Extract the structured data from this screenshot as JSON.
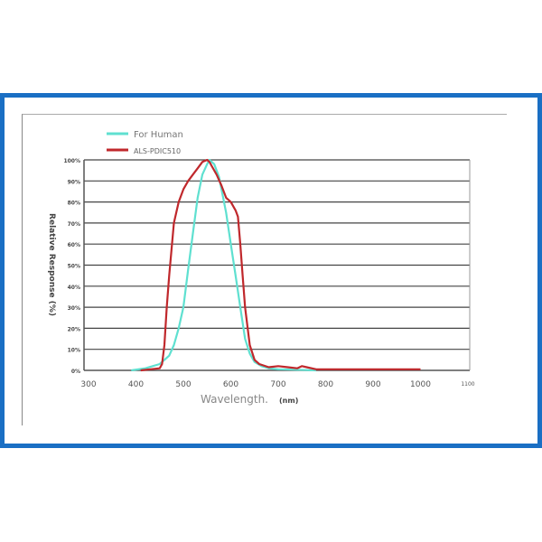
{
  "chart_data": {
    "type": "line",
    "xlabel": "Wavelength.",
    "xlabel_unit": "(nm)",
    "ylabel": "Relative Response (%)",
    "xlim": [
      300,
      1100
    ],
    "ylim": [
      0,
      100
    ],
    "x_ticks": [
      "300",
      "400",
      "500",
      "600",
      "700",
      "800",
      "900",
      "1000",
      "1100"
    ],
    "y_ticks": [
      "0%",
      "10%",
      "20%",
      "30%",
      "40%",
      "50%",
      "60%",
      "70%",
      "80%",
      "90%",
      "100%"
    ],
    "grid": "horizontal",
    "legend": "top-left",
    "series": [
      {
        "name": "For Human",
        "color": "#5fe0d0",
        "x": [
          390,
          420,
          450,
          470,
          480,
          490,
          500,
          510,
          520,
          530,
          540,
          550,
          555,
          565,
          575,
          590,
          600,
          610,
          620,
          630,
          640,
          650,
          665,
          680,
          700,
          740,
          780
        ],
        "y": [
          0,
          1,
          3,
          7,
          12,
          20,
          30,
          48,
          65,
          82,
          93,
          98,
          100,
          98,
          92,
          75,
          60,
          45,
          30,
          15,
          8,
          4,
          2,
          1,
          0.5,
          0.3,
          0
        ]
      },
      {
        "name": "ALS-PDIC510",
        "color": "#c0282c",
        "x": [
          410,
          430,
          450,
          455,
          460,
          465,
          470,
          480,
          490,
          500,
          510,
          520,
          530,
          540,
          550,
          555,
          560,
          570,
          580,
          590,
          600,
          610,
          615,
          620,
          625,
          630,
          640,
          650,
          660,
          680,
          700,
          720,
          740,
          750,
          760,
          780,
          800,
          850,
          900,
          950,
          1000
        ],
        "y": [
          0,
          0.5,
          1,
          3,
          12,
          30,
          45,
          70,
          80,
          86,
          90,
          93,
          96,
          99,
          100,
          99,
          97,
          93,
          88,
          82,
          80,
          76,
          73,
          60,
          45,
          30,
          12,
          5,
          3,
          1.5,
          2,
          1.5,
          1,
          2,
          1.5,
          0.5,
          0.5,
          0.5,
          0.5,
          0.5,
          0.5
        ]
      }
    ]
  }
}
